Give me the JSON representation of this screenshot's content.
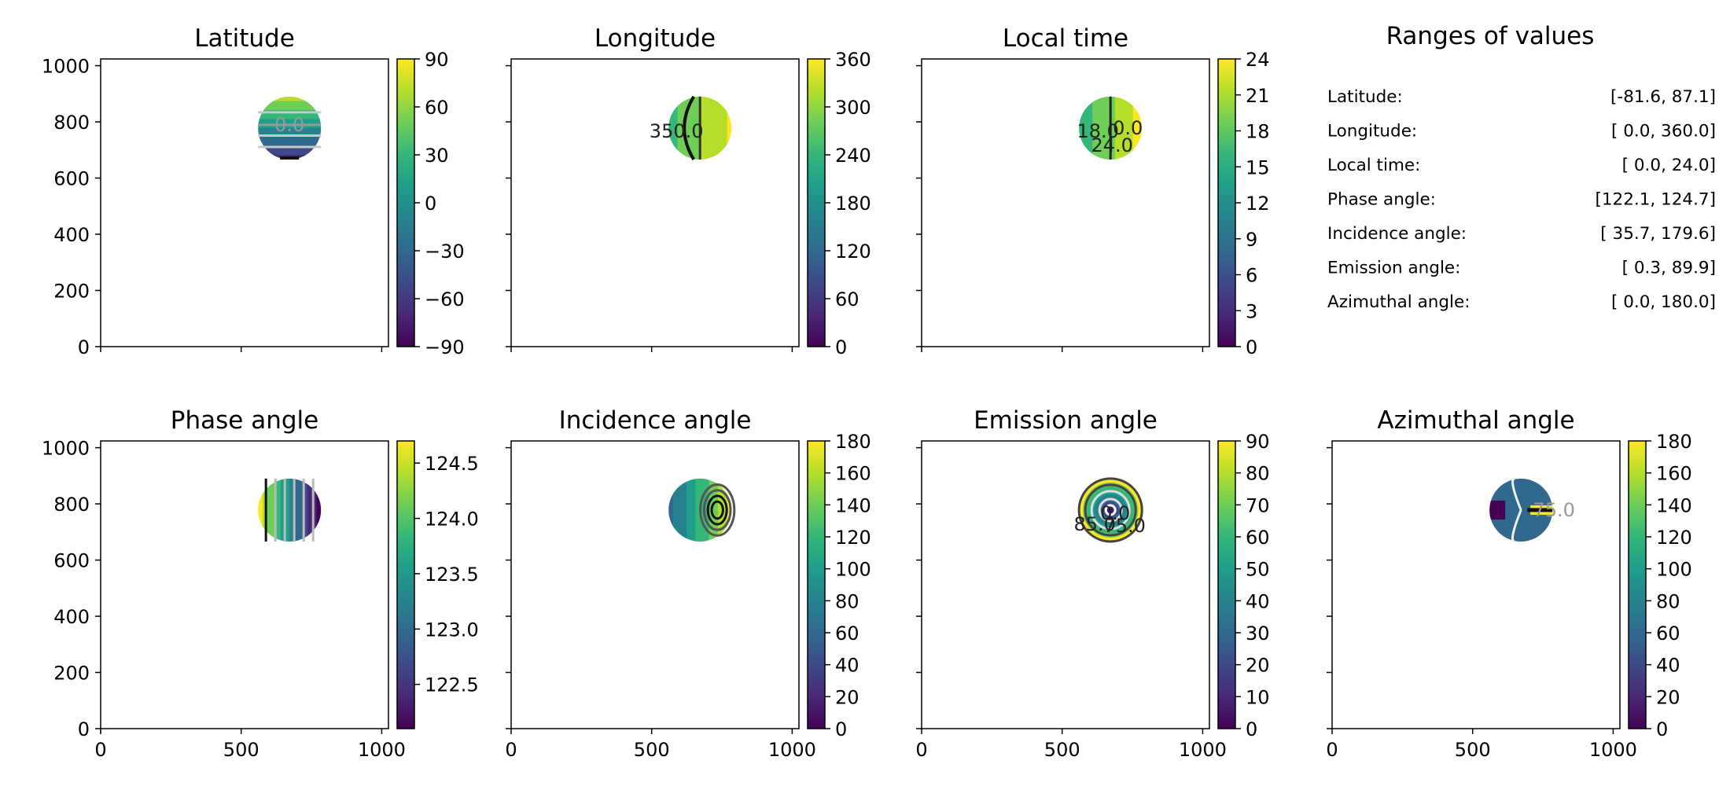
{
  "chart_data": [
    {
      "type": "heatmap",
      "title": "Latitude",
      "xlabel": "",
      "ylabel": "",
      "xlim": [
        0,
        1024
      ],
      "ylim": [
        0,
        1024
      ],
      "xticks": [
        0,
        500,
        1000
      ],
      "yticks": [
        0,
        200,
        400,
        600,
        800,
        1000
      ],
      "show_xticklabels": false,
      "show_yticklabels": true,
      "disk": {
        "center": [
          672,
          778
        ],
        "radius": 112
      },
      "colorbar": {
        "range": [
          -90,
          90
        ],
        "ticks": [
          "90",
          "60",
          "30",
          "0",
          "−30",
          "−60",
          "−90"
        ]
      },
      "contour_labels": [
        "0.0"
      ]
    },
    {
      "type": "heatmap",
      "title": "Longitude",
      "xlabel": "",
      "ylabel": "",
      "xlim": [
        0,
        1024
      ],
      "ylim": [
        0,
        1024
      ],
      "xticks": [
        0,
        500,
        1000
      ],
      "yticks": [
        0,
        200,
        400,
        600,
        800,
        1000
      ],
      "show_xticklabels": false,
      "show_yticklabels": false,
      "disk": {
        "center": [
          672,
          778
        ],
        "radius": 112
      },
      "colorbar": {
        "range": [
          0,
          360
        ],
        "ticks": [
          "360",
          "300",
          "240",
          "180",
          "120",
          "60",
          "0"
        ]
      },
      "contour_labels": [
        "350.0"
      ]
    },
    {
      "type": "heatmap",
      "title": "Local time",
      "xlabel": "",
      "ylabel": "",
      "xlim": [
        0,
        1024
      ],
      "ylim": [
        0,
        1024
      ],
      "xticks": [
        0,
        500,
        1000
      ],
      "yticks": [
        0,
        200,
        400,
        600,
        800,
        1000
      ],
      "show_xticklabels": false,
      "show_yticklabels": false,
      "disk": {
        "center": [
          672,
          778
        ],
        "radius": 112
      },
      "colorbar": {
        "range": [
          0,
          24
        ],
        "ticks": [
          "24",
          "21",
          "18",
          "15",
          "12",
          "9",
          "6",
          "3",
          "0"
        ]
      },
      "contour_labels": [
        "18.0",
        "24.0",
        "0.0"
      ]
    },
    {
      "type": "heatmap",
      "title": "Phase angle",
      "xlabel": "",
      "ylabel": "",
      "xlim": [
        0,
        1024
      ],
      "ylim": [
        0,
        1024
      ],
      "xticks": [
        0,
        500,
        1000
      ],
      "yticks": [
        0,
        200,
        400,
        600,
        800,
        1000
      ],
      "show_xticklabels": true,
      "show_yticklabels": true,
      "disk": {
        "center": [
          672,
          778
        ],
        "radius": 112
      },
      "colorbar": {
        "range": [
          122.1,
          124.7
        ],
        "ticks": [
          "124.5",
          "124.0",
          "123.5",
          "123.0",
          "122.5"
        ],
        "tick_values": [
          124.5,
          124.0,
          123.5,
          123.0,
          122.5
        ]
      },
      "contour_labels": []
    },
    {
      "type": "heatmap",
      "title": "Incidence angle",
      "xlabel": "",
      "ylabel": "",
      "xlim": [
        0,
        1024
      ],
      "ylim": [
        0,
        1024
      ],
      "xticks": [
        0,
        500,
        1000
      ],
      "yticks": [
        0,
        200,
        400,
        600,
        800,
        1000
      ],
      "show_xticklabels": true,
      "show_yticklabels": false,
      "disk": {
        "center": [
          672,
          778
        ],
        "radius": 112
      },
      "colorbar": {
        "range": [
          0,
          180
        ],
        "ticks": [
          "180",
          "160",
          "140",
          "120",
          "100",
          "80",
          "60",
          "40",
          "20",
          "0"
        ]
      },
      "contour_labels": []
    },
    {
      "type": "heatmap",
      "title": "Emission angle",
      "xlabel": "",
      "ylabel": "",
      "xlim": [
        0,
        1024
      ],
      "ylim": [
        0,
        1024
      ],
      "xticks": [
        0,
        500,
        1000
      ],
      "yticks": [
        0,
        200,
        400,
        600,
        800,
        1000
      ],
      "show_xticklabels": true,
      "show_yticklabels": false,
      "disk": {
        "center": [
          672,
          778
        ],
        "radius": 112
      },
      "colorbar": {
        "range": [
          0,
          90
        ],
        "ticks": [
          "90",
          "80",
          "70",
          "60",
          "50",
          "40",
          "30",
          "20",
          "10",
          "0"
        ]
      },
      "contour_labels": [
        "0.0",
        "75.0",
        "85.0"
      ]
    },
    {
      "type": "heatmap",
      "title": "Azimuthal angle",
      "xlabel": "",
      "ylabel": "",
      "xlim": [
        0,
        1024
      ],
      "ylim": [
        0,
        1024
      ],
      "xticks": [
        0,
        500,
        1000
      ],
      "yticks": [
        0,
        200,
        400,
        600,
        800,
        1000
      ],
      "show_xticklabels": true,
      "show_yticklabels": false,
      "disk": {
        "center": [
          672,
          778
        ],
        "radius": 112
      },
      "colorbar": {
        "range": [
          0,
          180
        ],
        "ticks": [
          "180",
          "160",
          "140",
          "120",
          "100",
          "80",
          "60",
          "40",
          "20",
          "0"
        ]
      },
      "contour_labels": [
        "75.0"
      ]
    },
    {
      "type": "table",
      "title": "Ranges of values",
      "rows": [
        {
          "label": "Latitude:",
          "range": "[-81.6,  87.1]"
        },
        {
          "label": "Longitude:",
          "range": "[  0.0, 360.0]"
        },
        {
          "label": "Local time:",
          "range": "[  0.0,  24.0]"
        },
        {
          "label": "Phase angle:",
          "range": "[122.1, 124.7]"
        },
        {
          "label": "Incidence angle:",
          "range": "[ 35.7, 179.6]"
        },
        {
          "label": "Emission angle:",
          "range": "[  0.3,  89.9]"
        },
        {
          "label": "Azimuthal angle:",
          "range": "[  0.0, 180.0]"
        }
      ]
    }
  ],
  "colormap": [
    "#440154",
    "#482878",
    "#3e4989",
    "#31688e",
    "#26828e",
    "#1f9e89",
    "#35b779",
    "#6ece58",
    "#b5de2b",
    "#fde725"
  ]
}
